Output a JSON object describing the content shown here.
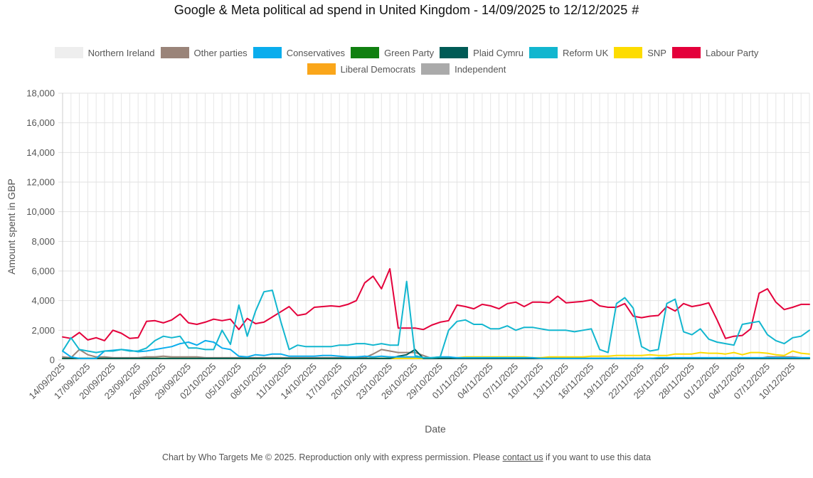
{
  "chart_data": {
    "type": "line",
    "title": "Google & Meta political ad spend in United Kingdom - 14/09/2025 to 12/12/2025",
    "title_suffix": "#",
    "xlabel": "Date",
    "ylabel": "Amount spent in GBP",
    "ylim": [
      0,
      18000
    ],
    "yticks": [
      0,
      2000,
      4000,
      6000,
      8000,
      10000,
      12000,
      14000,
      16000,
      18000
    ],
    "ytick_labels": [
      "0",
      "2,000",
      "4,000",
      "6,000",
      "8,000",
      "10,000",
      "12,000",
      "14,000",
      "16,000",
      "18,000"
    ],
    "x_tick_labels": [
      "14/09/2025",
      "17/09/2025",
      "20/09/2025",
      "23/09/2025",
      "26/09/2025",
      "29/09/2025",
      "02/10/2025",
      "05/10/2025",
      "08/10/2025",
      "11/10/2025",
      "14/10/2025",
      "17/10/2025",
      "20/10/2025",
      "23/10/2025",
      "26/10/2025",
      "29/10/2025",
      "01/11/2025",
      "04/11/2025",
      "07/11/2025",
      "10/11/2025",
      "13/11/2025",
      "16/11/2025",
      "19/11/2025",
      "22/11/2025",
      "25/11/2025",
      "28/11/2025",
      "01/12/2025",
      "04/12/2025",
      "07/12/2025",
      "10/12/2025"
    ],
    "num_days": 90,
    "grid": true,
    "legend_position": "top",
    "series": [
      {
        "name": "Northern Ireland",
        "color": "#eeeeee",
        "values": [
          30,
          30,
          30,
          30,
          30,
          30,
          30,
          30,
          30,
          30,
          30,
          30,
          30,
          30,
          30,
          30,
          30,
          30,
          30,
          30,
          30,
          30,
          30,
          30,
          30,
          30,
          30,
          30,
          30,
          30,
          30,
          30,
          30,
          30,
          30,
          30,
          30,
          30,
          30,
          30,
          30,
          30,
          30,
          30,
          30,
          30,
          30,
          30,
          30,
          30,
          30,
          30,
          30,
          30,
          30,
          30,
          30,
          30,
          30,
          30,
          30,
          30,
          30,
          30,
          30,
          30,
          30,
          30,
          30,
          30,
          30,
          30,
          30,
          30,
          30,
          30,
          30,
          30,
          30,
          30,
          30,
          30,
          30,
          30,
          30,
          30,
          30,
          30,
          30,
          30
        ]
      },
      {
        "name": "Other parties",
        "color": "#9a8479",
        "values": [
          200,
          150,
          700,
          350,
          200,
          200,
          150,
          150,
          150,
          150,
          200,
          200,
          250,
          200,
          200,
          200,
          200,
          150,
          150,
          150,
          150,
          150,
          150,
          150,
          150,
          150,
          150,
          150,
          150,
          150,
          150,
          150,
          150,
          150,
          150,
          150,
          150,
          400,
          700,
          600,
          500,
          500,
          500,
          300,
          100,
          100,
          100,
          100,
          100,
          100,
          100,
          100,
          100,
          100,
          100,
          100,
          100,
          100,
          100,
          100,
          100,
          100,
          100,
          100,
          100,
          100,
          100,
          100,
          100,
          100,
          100,
          100,
          100,
          100,
          100,
          100,
          100,
          100,
          100,
          100,
          100,
          100,
          100,
          100,
          200,
          200,
          200,
          200,
          150,
          100
        ]
      },
      {
        "name": "Conservatives",
        "color": "#0aaded",
        "values": [
          600,
          200,
          100,
          100,
          100,
          600,
          650,
          700,
          650,
          550,
          600,
          700,
          800,
          900,
          1100,
          1200,
          1000,
          1300,
          1200,
          800,
          700,
          250,
          200,
          350,
          300,
          400,
          400,
          250,
          250,
          250,
          250,
          300,
          300,
          250,
          200,
          200,
          250,
          200,
          250,
          200,
          200,
          200,
          200,
          150,
          150,
          200,
          200,
          150,
          150,
          150,
          150,
          150,
          150,
          150,
          150,
          150,
          150,
          100,
          100,
          100,
          100,
          100,
          100,
          100,
          100,
          100,
          100,
          100,
          100,
          100,
          100,
          150,
          150,
          150,
          150,
          150,
          150,
          150,
          150,
          150,
          150,
          150,
          150,
          150,
          150,
          150,
          150,
          150,
          150,
          150
        ]
      },
      {
        "name": "Green Party",
        "color": "#108010",
        "values": [
          100,
          100,
          100,
          100,
          100,
          100,
          100,
          100,
          100,
          100,
          100,
          100,
          100,
          100,
          100,
          100,
          100,
          100,
          100,
          100,
          100,
          100,
          100,
          100,
          100,
          100,
          100,
          100,
          100,
          100,
          100,
          100,
          100,
          100,
          100,
          100,
          100,
          100,
          100,
          100,
          100,
          100,
          100,
          100,
          100,
          100,
          100,
          100,
          100,
          100,
          100,
          100,
          100,
          100,
          100,
          100,
          100,
          100,
          100,
          100,
          100,
          100,
          100,
          100,
          100,
          100,
          100,
          100,
          100,
          100,
          100,
          100,
          100,
          100,
          100,
          100,
          100,
          100,
          100,
          100,
          100,
          100,
          100,
          100,
          100,
          100,
          100,
          100,
          100,
          100
        ]
      },
      {
        "name": "Plaid Cymru",
        "color": "#005b56",
        "values": [
          100,
          100,
          100,
          100,
          100,
          100,
          100,
          100,
          100,
          100,
          100,
          100,
          100,
          100,
          100,
          100,
          100,
          100,
          100,
          100,
          100,
          100,
          100,
          100,
          100,
          100,
          100,
          100,
          100,
          100,
          100,
          100,
          100,
          100,
          100,
          100,
          100,
          100,
          100,
          100,
          250,
          350,
          700,
          100,
          100,
          100,
          100,
          100,
          100,
          100,
          100,
          100,
          100,
          100,
          100,
          100,
          100,
          100,
          100,
          100,
          100,
          100,
          100,
          100,
          100,
          100,
          100,
          100,
          100,
          100,
          100,
          100,
          100,
          100,
          100,
          100,
          100,
          100,
          100,
          100,
          100,
          100,
          100,
          100,
          100,
          100,
          100,
          100,
          100,
          100
        ]
      },
      {
        "name": "Reform UK",
        "color": "#12b6cf",
        "values": [
          600,
          1500,
          700,
          600,
          500,
          600,
          600,
          700,
          600,
          600,
          800,
          1300,
          1600,
          1500,
          1600,
          800,
          800,
          700,
          700,
          2000,
          1050,
          3700,
          1600,
          3300,
          4600,
          4700,
          2600,
          700,
          1000,
          900,
          900,
          900,
          900,
          1000,
          1000,
          1100,
          1100,
          1000,
          1100,
          1000,
          1000,
          5300,
          300,
          150,
          150,
          200,
          2000,
          2600,
          2700,
          2400,
          2400,
          2100,
          2100,
          2300,
          2000,
          2200,
          2200,
          2100,
          2000,
          2000,
          2000,
          1900,
          2000,
          2100,
          700,
          500,
          3800,
          4200,
          3500,
          900,
          600,
          700,
          3800,
          4100,
          1900,
          1700,
          2100,
          1400,
          1200,
          1100,
          1000,
          2400,
          2500,
          2600,
          1700,
          1300,
          1100,
          1500,
          1600,
          2000
        ]
      },
      {
        "name": "SNP",
        "color": "#fddc00",
        "values": [
          100,
          100,
          100,
          100,
          100,
          100,
          100,
          100,
          100,
          100,
          100,
          100,
          100,
          100,
          100,
          100,
          100,
          100,
          100,
          100,
          100,
          100,
          100,
          100,
          100,
          100,
          100,
          100,
          100,
          100,
          100,
          100,
          100,
          100,
          100,
          100,
          100,
          100,
          100,
          100,
          100,
          100,
          100,
          100,
          100,
          100,
          100,
          150,
          200,
          200,
          200,
          200,
          200,
          200,
          200,
          200,
          150,
          150,
          200,
          200,
          200,
          200,
          200,
          250,
          250,
          250,
          300,
          300,
          300,
          300,
          350,
          300,
          300,
          400,
          400,
          400,
          500,
          450,
          450,
          400,
          500,
          350,
          500,
          500,
          450,
          350,
          300,
          600,
          450,
          400
        ]
      },
      {
        "name": "Labour Party",
        "color": "#e4003b",
        "values": [
          1550,
          1450,
          1850,
          1350,
          1500,
          1300,
          2000,
          1800,
          1450,
          1500,
          2600,
          2650,
          2500,
          2700,
          3100,
          2500,
          2400,
          2550,
          2750,
          2650,
          2750,
          2050,
          2800,
          2450,
          2550,
          2900,
          3250,
          3600,
          3000,
          3100,
          3550,
          3600,
          3650,
          3600,
          3750,
          4000,
          5200,
          5650,
          4800,
          6150,
          2150,
          2150,
          2150,
          2050,
          2350,
          2550,
          2650,
          3700,
          3600,
          3450,
          3750,
          3650,
          3450,
          3800,
          3900,
          3600,
          3900,
          3900,
          3850,
          4300,
          3850,
          3900,
          3950,
          4050,
          3650,
          3550,
          3550,
          3800,
          2950,
          2850,
          2950,
          3000,
          3600,
          3300,
          3800,
          3600,
          3700,
          3850,
          2700,
          1450,
          1600,
          1650,
          2100,
          4500,
          4800,
          3900,
          3400,
          3550,
          3750,
          3750
        ]
      },
      {
        "name": "Liberal Democrats",
        "color": "#faa61a",
        "values": [
          100,
          100,
          100,
          100,
          100,
          100,
          100,
          100,
          100,
          100,
          100,
          100,
          100,
          100,
          100,
          100,
          100,
          100,
          100,
          100,
          100,
          100,
          100,
          100,
          100,
          100,
          100,
          100,
          100,
          100,
          100,
          100,
          100,
          100,
          100,
          100,
          100,
          100,
          100,
          100,
          100,
          100,
          100,
          100,
          100,
          100,
          100,
          100,
          100,
          100,
          100,
          100,
          100,
          100,
          100,
          100,
          100,
          100,
          100,
          100,
          100,
          100,
          100,
          100,
          100,
          100,
          100,
          100,
          100,
          100,
          100,
          100,
          100,
          100,
          100,
          100,
          100,
          100,
          100,
          100,
          100,
          100,
          100,
          100,
          100,
          100,
          100,
          100,
          100,
          100
        ]
      },
      {
        "name": "Independent",
        "color": "#aaaaaa",
        "values": [
          100,
          100,
          100,
          100,
          100,
          100,
          100,
          100,
          100,
          100,
          100,
          100,
          100,
          100,
          100,
          100,
          100,
          100,
          100,
          100,
          100,
          100,
          100,
          100,
          100,
          100,
          100,
          100,
          100,
          100,
          100,
          100,
          100,
          100,
          100,
          100,
          100,
          100,
          100,
          100,
          100,
          100,
          100,
          100,
          100,
          100,
          100,
          100,
          100,
          100,
          100,
          100,
          100,
          100,
          100,
          100,
          100,
          100,
          100,
          100,
          100,
          100,
          100,
          100,
          100,
          100,
          100,
          100,
          100,
          100,
          100,
          100,
          100,
          100,
          100,
          100,
          100,
          100,
          100,
          100,
          100,
          100,
          100,
          100,
          100,
          100,
          100,
          100,
          100,
          100
        ]
      }
    ]
  },
  "footer": {
    "text_before": "Chart by Who Targets Me © 2025. Reproduction only with express permission. Please ",
    "link_text": "contact us",
    "text_after": " if you want to use this data"
  }
}
